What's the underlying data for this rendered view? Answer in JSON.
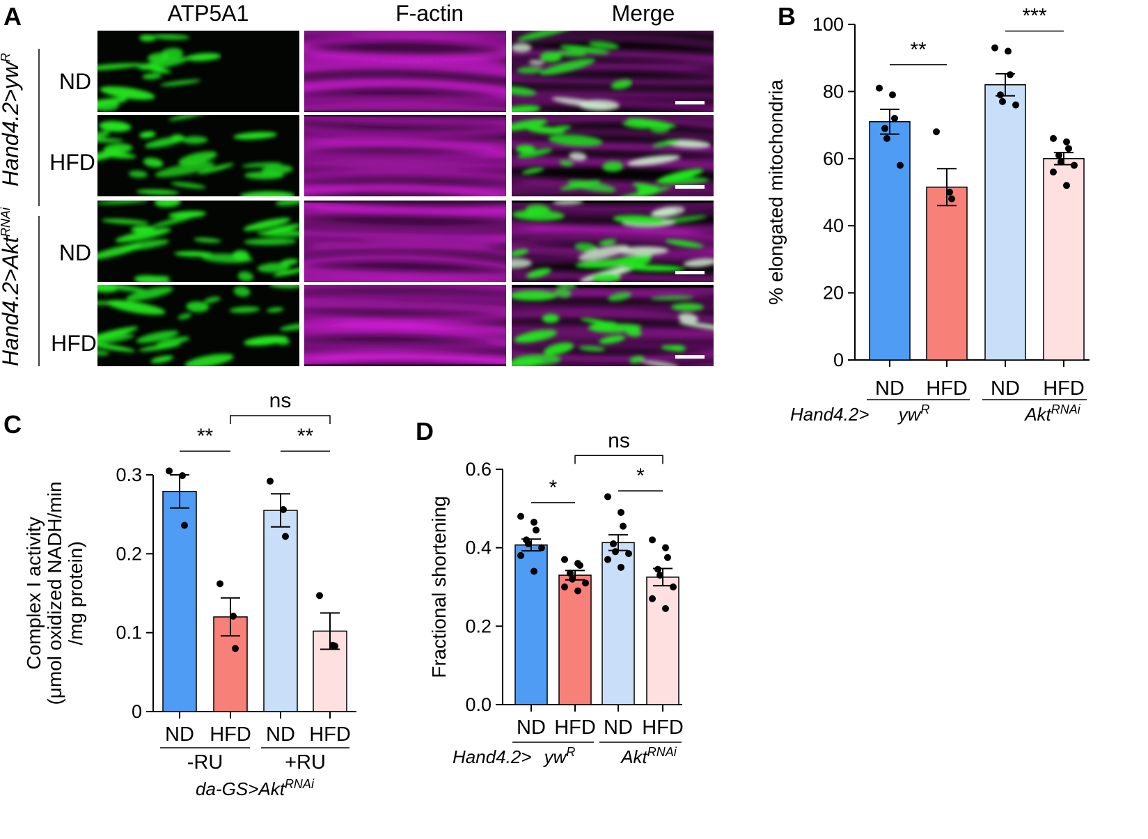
{
  "panel_a": {
    "letter": "A",
    "columns": [
      "ATP5A1",
      "F-actin",
      "Merge"
    ],
    "row_labels": [
      "ND",
      "HFD",
      "ND",
      "HFD"
    ],
    "genotypes": [
      {
        "base": "Hand4.2>yw",
        "sup": "R"
      },
      {
        "base": "Hand4.2>Akt",
        "sup": "RNAi"
      }
    ],
    "colors": {
      "atp5a1": "#22e61e",
      "factin": "#e01ee6",
      "merge_overlap": "#c8e6c8"
    }
  },
  "colors": {
    "nd_ctrl": "#4f9cf5",
    "hfd_ctrl": "#f78079",
    "nd_akt": "#c9def8",
    "hfd_akt": "#fde0df"
  },
  "chart_data": [
    {
      "panel": "B",
      "type": "bar",
      "ylabel": "% elongated mitochondria",
      "ylim": [
        0,
        100
      ],
      "yticks": [
        "0",
        "20",
        "40",
        "60",
        "80",
        "100"
      ],
      "categories": [
        "ND",
        "HFD",
        "ND",
        "HFD"
      ],
      "values": [
        71,
        51.5,
        82,
        60
      ],
      "errors": [
        3.7,
        5.5,
        3.3,
        1.8
      ],
      "points": [
        [
          81,
          79,
          72,
          69,
          66,
          58
        ],
        [
          68,
          50,
          48
        ],
        [
          93,
          92,
          85,
          79,
          77,
          76
        ],
        [
          66,
          65,
          63,
          61,
          59,
          58,
          56,
          52
        ]
      ],
      "significance": [
        {
          "label": "**",
          "from": 0,
          "to": 1,
          "y": 88
        },
        {
          "label": "***",
          "from": 2,
          "to": 3,
          "y": 98
        }
      ],
      "group_labels": [
        {
          "base": "yw",
          "sup": "R"
        },
        {
          "base": "Akt",
          "sup": "RNAi"
        }
      ],
      "prefix": "Hand4.2>"
    },
    {
      "panel": "C",
      "type": "bar",
      "ylabel": "Complex I activity",
      "ylabel2": "(μmol oxidized NADH/min",
      "ylabel3": "/mg protein)",
      "ylim": [
        0,
        0.3
      ],
      "yticks": [
        "0",
        "0.1",
        "0.2",
        "0.3"
      ],
      "categories": [
        "ND",
        "HFD",
        "ND",
        "HFD"
      ],
      "values": [
        0.279,
        0.12,
        0.255,
        0.102
      ],
      "errors": [
        0.021,
        0.024,
        0.021,
        0.023
      ],
      "points": [
        [
          0.305,
          0.299,
          0.236
        ],
        [
          0.162,
          0.121,
          0.08
        ],
        [
          0.292,
          0.256,
          0.222
        ],
        [
          0.147,
          0.084,
          0.083
        ]
      ],
      "significance": [
        {
          "label": "**",
          "from": 0,
          "to": 1,
          "y": 0.33
        },
        {
          "label": "**",
          "from": 2,
          "to": 3,
          "y": 0.33
        },
        {
          "label": "ns",
          "from": 1,
          "to": 3,
          "y": 0.375
        }
      ],
      "group_labels": [
        {
          "base": "-RU",
          "sup": ""
        },
        {
          "base": "+RU",
          "sup": ""
        }
      ],
      "genotype": {
        "base": "da-GS>Akt",
        "sup": "RNAi"
      }
    },
    {
      "panel": "D",
      "type": "bar",
      "ylabel": "Fractional shortening",
      "ylim": [
        0,
        0.6
      ],
      "yticks": [
        "0.0",
        "0.2",
        "0.4",
        "0.6"
      ],
      "categories": [
        "ND",
        "HFD",
        "ND",
        "HFD"
      ],
      "values": [
        0.407,
        0.33,
        0.413,
        0.325
      ],
      "errors": [
        0.015,
        0.012,
        0.02,
        0.022
      ],
      "points": [
        [
          0.48,
          0.465,
          0.445,
          0.42,
          0.41,
          0.4,
          0.38,
          0.34
        ],
        [
          0.37,
          0.36,
          0.355,
          0.335,
          0.32,
          0.31,
          0.3,
          0.29
        ],
        [
          0.53,
          0.49,
          0.455,
          0.41,
          0.39,
          0.385,
          0.37,
          0.35
        ],
        [
          0.42,
          0.4,
          0.375,
          0.345,
          0.33,
          0.3,
          0.27,
          0.245
        ]
      ],
      "significance": [
        {
          "label": "*",
          "from": 0,
          "to": 1,
          "y": 0.515
        },
        {
          "label": "*",
          "from": 2,
          "to": 3,
          "y": 0.545
        },
        {
          "label": "ns",
          "from": 1,
          "to": 3,
          "y": 0.635
        }
      ],
      "group_labels": [
        {
          "base": "yw",
          "sup": "R"
        },
        {
          "base": "Akt",
          "sup": "RNAi"
        }
      ],
      "prefix": "Hand4.2> "
    }
  ]
}
